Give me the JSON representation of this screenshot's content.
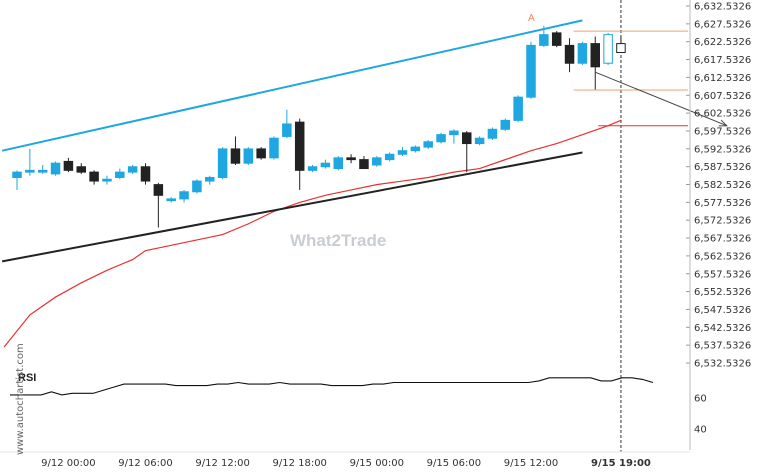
{
  "chart_data": {
    "type": "candlestick",
    "side_label": "www.autochartist.com",
    "watermark": "What2Trade",
    "pattern_marker": "A",
    "current_time_label": "9/15 19:00",
    "price_axis": {
      "ylim": [
        6532.5326,
        6632.5326
      ],
      "ticks": [
        "6,632.5326",
        "6,627.5326",
        "6,622.5326",
        "6,617.5326",
        "6,612.5326",
        "6,607.5326",
        "6,602.5326",
        "6,597.5326",
        "6,592.5326",
        "6,587.5326",
        "6,582.5326",
        "6,577.5326",
        "6,572.5326",
        "6,567.5326",
        "6,562.5326",
        "6,557.5326",
        "6,552.5326",
        "6,547.5326",
        "6,542.5326",
        "6,537.5326",
        "6,532.5326"
      ]
    },
    "x_axis": {
      "ticks": [
        {
          "label": "9/12 00:00",
          "index": 4
        },
        {
          "label": "9/12 06:00",
          "index": 10
        },
        {
          "label": "9/12 12:00",
          "index": 16
        },
        {
          "label": "9/12 18:00",
          "index": 22
        },
        {
          "label": "9/15 00:00",
          "index": 28
        },
        {
          "label": "9/15 06:00",
          "index": 34
        },
        {
          "label": "9/15 12:00",
          "index": 40
        },
        {
          "label": "9/15 19:00",
          "index": 47
        }
      ]
    },
    "candles": [
      {
        "o": 6584.5,
        "h": 6586.5,
        "l": 6581.0,
        "c": 6586.0
      },
      {
        "o": 6586.0,
        "h": 6592.5,
        "l": 6585.0,
        "c": 6586.5
      },
      {
        "o": 6586.0,
        "h": 6588.0,
        "l": 6585.5,
        "c": 6586.5
      },
      {
        "o": 6585.5,
        "h": 6589.0,
        "l": 6585.0,
        "c": 6588.5
      },
      {
        "o": 6589.0,
        "h": 6590.0,
        "l": 6586.0,
        "c": 6586.5
      },
      {
        "o": 6587.5,
        "h": 6588.5,
        "l": 6585.5,
        "c": 6586.0
      },
      {
        "o": 6586.0,
        "h": 6586.5,
        "l": 6582.5,
        "c": 6583.5
      },
      {
        "o": 6583.5,
        "h": 6585.0,
        "l": 6582.5,
        "c": 6584.0
      },
      {
        "o": 6584.5,
        "h": 6587.0,
        "l": 6584.0,
        "c": 6586.0
      },
      {
        "o": 6586.0,
        "h": 6588.0,
        "l": 6585.5,
        "c": 6587.5
      },
      {
        "o": 6587.5,
        "h": 6588.5,
        "l": 6582.5,
        "c": 6583.5
      },
      {
        "o": 6582.5,
        "h": 6583.0,
        "l": 6570.5,
        "c": 6579.5
      },
      {
        "o": 6578.0,
        "h": 6579.0,
        "l": 6577.5,
        "c": 6578.5
      },
      {
        "o": 6578.5,
        "h": 6581.0,
        "l": 6577.5,
        "c": 6580.5
      },
      {
        "o": 6580.5,
        "h": 6584.0,
        "l": 6580.0,
        "c": 6583.5
      },
      {
        "o": 6583.5,
        "h": 6585.0,
        "l": 6582.5,
        "c": 6584.5
      },
      {
        "o": 6584.5,
        "h": 6593.0,
        "l": 6584.0,
        "c": 6592.5
      },
      {
        "o": 6592.5,
        "h": 6596.0,
        "l": 6588.0,
        "c": 6588.5
      },
      {
        "o": 6588.5,
        "h": 6593.0,
        "l": 6588.0,
        "c": 6592.5
      },
      {
        "o": 6592.5,
        "h": 6593.0,
        "l": 6589.5,
        "c": 6590.0
      },
      {
        "o": 6590.0,
        "h": 6596.0,
        "l": 6589.5,
        "c": 6595.5
      },
      {
        "o": 6596.0,
        "h": 6603.5,
        "l": 6595.5,
        "c": 6599.5
      },
      {
        "o": 6600.0,
        "h": 6601.0,
        "l": 6581.0,
        "c": 6586.5
      },
      {
        "o": 6586.5,
        "h": 6588.0,
        "l": 6586.0,
        "c": 6587.5
      },
      {
        "o": 6587.5,
        "h": 6589.5,
        "l": 6587.0,
        "c": 6588.5
      },
      {
        "o": 6587.0,
        "h": 6590.5,
        "l": 6586.5,
        "c": 6590.0
      },
      {
        "o": 6590.0,
        "h": 6591.0,
        "l": 6588.5,
        "c": 6589.5
      },
      {
        "o": 6589.5,
        "h": 6590.5,
        "l": 6587.0,
        "c": 6587.0
      },
      {
        "o": 6588.0,
        "h": 6590.5,
        "l": 6587.5,
        "c": 6590.0
      },
      {
        "o": 6589.5,
        "h": 6591.5,
        "l": 6589.0,
        "c": 6591.0
      },
      {
        "o": 6591.0,
        "h": 6593.0,
        "l": 6590.5,
        "c": 6592.0
      },
      {
        "o": 6592.0,
        "h": 6593.5,
        "l": 6591.5,
        "c": 6593.0
      },
      {
        "o": 6593.0,
        "h": 6595.0,
        "l": 6592.5,
        "c": 6594.5
      },
      {
        "o": 6594.5,
        "h": 6597.0,
        "l": 6594.0,
        "c": 6596.5
      },
      {
        "o": 6596.5,
        "h": 6598.0,
        "l": 6594.0,
        "c": 6597.5
      },
      {
        "o": 6597.0,
        "h": 6597.5,
        "l": 6586.0,
        "c": 6594.0
      },
      {
        "o": 6594.0,
        "h": 6596.0,
        "l": 6593.5,
        "c": 6595.5
      },
      {
        "o": 6595.5,
        "h": 6598.5,
        "l": 6595.0,
        "c": 6598.0
      },
      {
        "o": 6598.0,
        "h": 6601.0,
        "l": 6597.5,
        "c": 6600.5
      },
      {
        "o": 6600.5,
        "h": 6607.5,
        "l": 6600.0,
        "c": 6607.0
      },
      {
        "o": 6607.0,
        "h": 6622.5,
        "l": 6606.5,
        "c": 6621.5
      },
      {
        "o": 6621.5,
        "h": 6627.0,
        "l": 6621.0,
        "c": 6624.5
      },
      {
        "o": 6625.0,
        "h": 6625.5,
        "l": 6621.0,
        "c": 6621.5
      },
      {
        "o": 6621.5,
        "h": 6623.5,
        "l": 6614.0,
        "c": 6616.5
      },
      {
        "o": 6616.5,
        "h": 6622.5,
        "l": 6616.0,
        "c": 6622.0
      },
      {
        "o": 6622.0,
        "h": 6624.0,
        "l": 6609.0,
        "c": 6615.5
      },
      {
        "o": 6616.5,
        "h": 6625.0,
        "l": 6616.0,
        "c": 6624.5
      },
      {
        "o": 6622.0,
        "h": 6624.0,
        "l": 6619.5,
        "c": 6619.5
      }
    ],
    "bull_color": "#1ea7e1",
    "bear_color": "#222222",
    "projection_candles": [
      46,
      47
    ],
    "channel_upper": {
      "from": {
        "index": -1,
        "price": 6592.0
      },
      "to": {
        "index": 44,
        "price": 6628.5
      },
      "color": "#1ea7e1"
    },
    "channel_lower": {
      "from": {
        "index": -1,
        "price": 6561.0
      },
      "to": {
        "index": 44,
        "price": 6591.5
      },
      "color": "#222222"
    },
    "moving_average": {
      "color": "#e8312f",
      "points": [
        [
          -1,
          6537.0
        ],
        [
          1,
          6546.0
        ],
        [
          3,
          6551.0
        ],
        [
          5,
          6555.0
        ],
        [
          7,
          6558.5
        ],
        [
          9,
          6561.5
        ],
        [
          10,
          6564.0
        ],
        [
          12,
          6565.5
        ],
        [
          14,
          6567.0
        ],
        [
          16,
          6568.5
        ],
        [
          18,
          6571.5
        ],
        [
          20,
          6575.0
        ],
        [
          22,
          6577.5
        ],
        [
          24,
          6579.5
        ],
        [
          26,
          6581.0
        ],
        [
          28,
          6582.5
        ],
        [
          30,
          6583.5
        ],
        [
          32,
          6584.5
        ],
        [
          34,
          6586.0
        ],
        [
          36,
          6587.0
        ],
        [
          38,
          6589.5
        ],
        [
          40,
          6592.0
        ],
        [
          42,
          6594.0
        ],
        [
          44,
          6596.5
        ],
        [
          46,
          6599.0
        ],
        [
          47,
          6600.5
        ]
      ]
    },
    "target_levels": [
      {
        "price": 6625.5,
        "color": "#f0a070"
      },
      {
        "price": 6609.0,
        "color": "#f0a070"
      },
      {
        "price": 6599.0,
        "color": "#e8312f"
      }
    ],
    "forecast_arrow": {
      "from": {
        "index": 45,
        "price": 6614.0
      },
      "to": {
        "index": 55,
        "price": 6599.0
      }
    },
    "rsi": {
      "title": "RSI",
      "ticks": [
        60,
        40
      ],
      "ylim": [
        30,
        85
      ],
      "values": [
        62,
        62,
        62,
        62,
        64,
        62,
        63,
        63,
        63,
        65,
        67,
        69,
        69,
        69,
        69,
        69,
        68,
        68,
        68,
        68,
        69,
        69,
        70,
        69,
        69,
        69,
        70,
        69,
        69,
        69,
        69,
        68,
        68,
        68,
        68,
        69,
        69,
        70,
        70,
        70,
        70,
        70,
        70,
        70,
        70,
        70,
        70,
        70,
        70,
        70,
        70,
        71,
        73,
        73,
        73,
        73,
        73,
        71,
        71,
        73,
        73,
        72,
        70
      ]
    }
  }
}
